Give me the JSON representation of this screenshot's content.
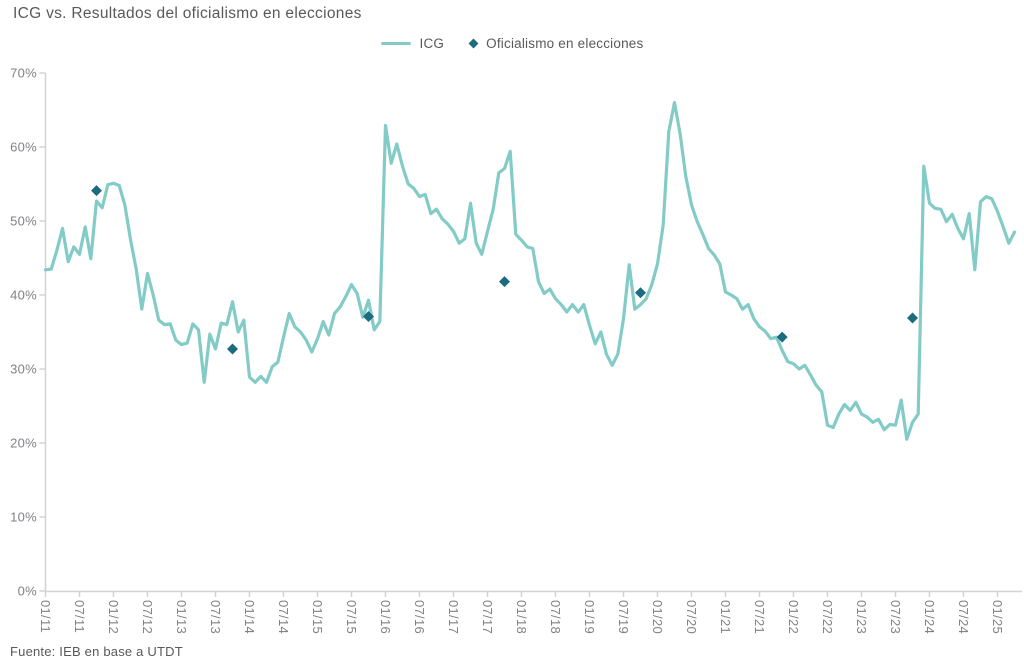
{
  "title": "ICG vs. Resultados del oficialismo en elecciones",
  "legend": {
    "items": [
      {
        "label": "ICG",
        "swatch": "line"
      },
      {
        "label": "Oficialismo en elecciones",
        "swatch": "diamond"
      }
    ]
  },
  "footer": {
    "source": "Fuente: IEB en base a UTDT"
  },
  "colors": {
    "icg_line": "#82cbc7",
    "election_marker": "#1d6b7e",
    "axis": "#d2d3d5",
    "tick_label": "#808285",
    "text": "#58595b",
    "background": "#ffffff"
  },
  "chart_data": {
    "type": "line",
    "title": "ICG vs. Resultados del oficialismo en elecciones",
    "unit": "%",
    "x_start_month": "01/2011",
    "x_end_month": "04/2025",
    "ylim": [
      0,
      70
    ],
    "grid": "off",
    "legend_position": "top-center",
    "y_tick_labels": [
      "0%",
      "10%",
      "20%",
      "30%",
      "40%",
      "50%",
      "60%",
      "70%"
    ],
    "x_tick_labels": [
      "01/11",
      "07/11",
      "01/12",
      "07/12",
      "01/13",
      "07/13",
      "01/14",
      "07/14",
      "01/15",
      "07/15",
      "01/16",
      "07/16",
      "01/17",
      "07/17",
      "01/18",
      "07/18",
      "01/19",
      "07/19",
      "01/20",
      "07/20",
      "01/21",
      "07/21",
      "01/22",
      "07/22",
      "01/23",
      "07/23",
      "01/24",
      "07/24",
      "01/25"
    ],
    "series": [
      {
        "name": "ICG",
        "type": "line",
        "frequency": "monthly",
        "monthly_values": [
          43.4,
          43.5,
          46.0,
          49.0,
          44.5,
          46.5,
          45.5,
          49.2,
          44.9,
          52.7,
          51.8,
          54.9,
          55.1,
          54.8,
          52.2,
          47.5,
          43.5,
          38.1,
          42.9,
          40.0,
          36.6,
          36.0,
          36.1,
          33.9,
          33.3,
          33.5,
          36.1,
          35.3,
          28.2,
          34.7,
          32.7,
          36.2,
          36.0,
          39.1,
          35.0,
          36.6,
          28.9,
          28.2,
          29.0,
          28.2,
          30.3,
          30.9,
          34.3,
          37.5,
          35.7,
          35.0,
          33.9,
          32.3,
          34.1,
          36.4,
          34.6,
          37.5,
          38.4,
          39.8,
          41.4,
          40.2,
          37.0,
          39.3,
          35.3,
          36.4,
          62.9,
          57.8,
          60.4,
          57.4,
          55.0,
          54.4,
          53.3,
          53.6,
          51.0,
          51.6,
          50.3,
          49.6,
          48.6,
          47.0,
          47.6,
          52.4,
          47.0,
          45.5,
          48.6,
          51.6,
          56.5,
          57.1,
          59.4,
          48.2,
          47.4,
          46.5,
          46.3,
          41.8,
          40.2,
          40.8,
          39.5,
          38.7,
          37.7,
          38.7,
          37.7,
          38.7,
          35.9,
          33.4,
          35.0,
          32.0,
          30.5,
          32.0,
          36.8,
          44.1,
          38.1,
          38.7,
          39.5,
          41.4,
          44.2,
          49.5,
          62.1,
          66.0,
          61.7,
          56.0,
          52.2,
          49.9,
          48.2,
          46.3,
          45.4,
          44.2,
          40.4,
          40.0,
          39.5,
          38.1,
          38.7,
          36.8,
          35.7,
          35.1,
          34.1,
          34.3,
          32.5,
          31.0,
          30.7,
          30.0,
          30.5,
          29.2,
          27.8,
          26.9,
          22.4,
          22.1,
          23.9,
          25.2,
          24.4,
          25.5,
          23.9,
          23.5,
          22.8,
          23.2,
          21.8,
          22.5,
          22.4,
          25.8,
          20.5,
          22.8,
          23.9,
          57.4,
          52.4,
          51.7,
          51.6,
          49.9,
          50.9,
          49.0,
          47.6,
          51.0,
          43.4,
          52.6,
          53.3,
          53.0,
          51.3,
          49.2,
          47.0,
          48.5
        ]
      },
      {
        "name": "Oficialismo en elecciones",
        "type": "scatter",
        "marker": "diamond",
        "points": [
          {
            "month": "10/2011",
            "month_index": 9,
            "value": 54.1
          },
          {
            "month": "10/2013",
            "month_index": 33,
            "value": 32.7
          },
          {
            "month": "10/2015",
            "month_index": 57,
            "value": 37.1
          },
          {
            "month": "10/2017",
            "month_index": 81,
            "value": 41.8
          },
          {
            "month": "10/2019",
            "month_index": 105,
            "value": 40.3
          },
          {
            "month": "11/2021",
            "month_index": 130,
            "value": 34.3
          },
          {
            "month": "10/2023",
            "month_index": 153,
            "value": 36.9
          }
        ]
      }
    ]
  }
}
